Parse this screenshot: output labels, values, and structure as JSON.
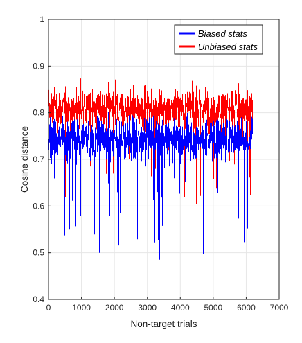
{
  "chart_data": {
    "type": "line",
    "title": "",
    "xlabel": "Non-target trials",
    "ylabel": "Cosine distance",
    "xlim": [
      0,
      7000
    ],
    "ylim": [
      0.4,
      1
    ],
    "xticks": [
      0,
      1000,
      2000,
      3000,
      4000,
      5000,
      6000,
      7000
    ],
    "yticks": [
      0.4,
      0.5,
      0.6,
      0.7,
      0.8,
      0.9,
      1
    ],
    "xtick_labels": [
      "0",
      "1000",
      "2000",
      "3000",
      "4000",
      "5000",
      "6000",
      "7000"
    ],
    "ytick_labels": [
      "0.4",
      "0.5",
      "0.6",
      "0.7",
      "0.8",
      "0.9",
      "1"
    ],
    "grid": true,
    "legend_position": "top-right",
    "n_points": 6200,
    "series": [
      {
        "name": "Biased stats",
        "color": "#0000ff",
        "center": 0.745,
        "typical_range": [
          0.66,
          0.81
        ],
        "extreme_low": 0.42,
        "extreme_high": 0.84
      },
      {
        "name": "Unbiased stats",
        "color": "#ff0000",
        "center": 0.81,
        "typical_range": [
          0.72,
          0.89
        ],
        "extreme_low": 0.46,
        "extreme_high": 0.925
      }
    ]
  }
}
